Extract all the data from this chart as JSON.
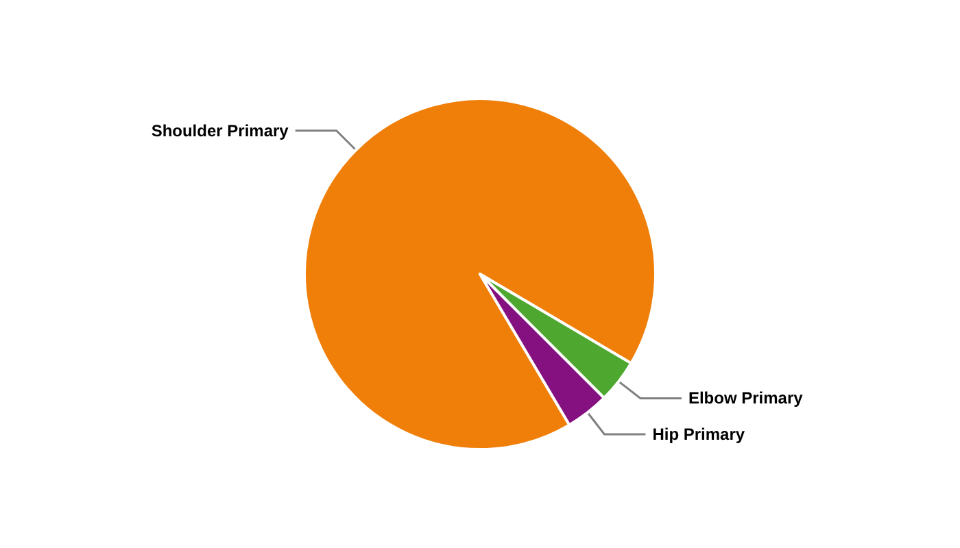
{
  "chart_data": {
    "type": "pie",
    "categories": [
      "Shoulder Primary",
      "Elbow Primary",
      "Hip Primary"
    ],
    "values": [
      92,
      4,
      4
    ],
    "colors": [
      "#f07f09",
      "#4ea72e",
      "#84117f"
    ],
    "legend": false
  }
}
